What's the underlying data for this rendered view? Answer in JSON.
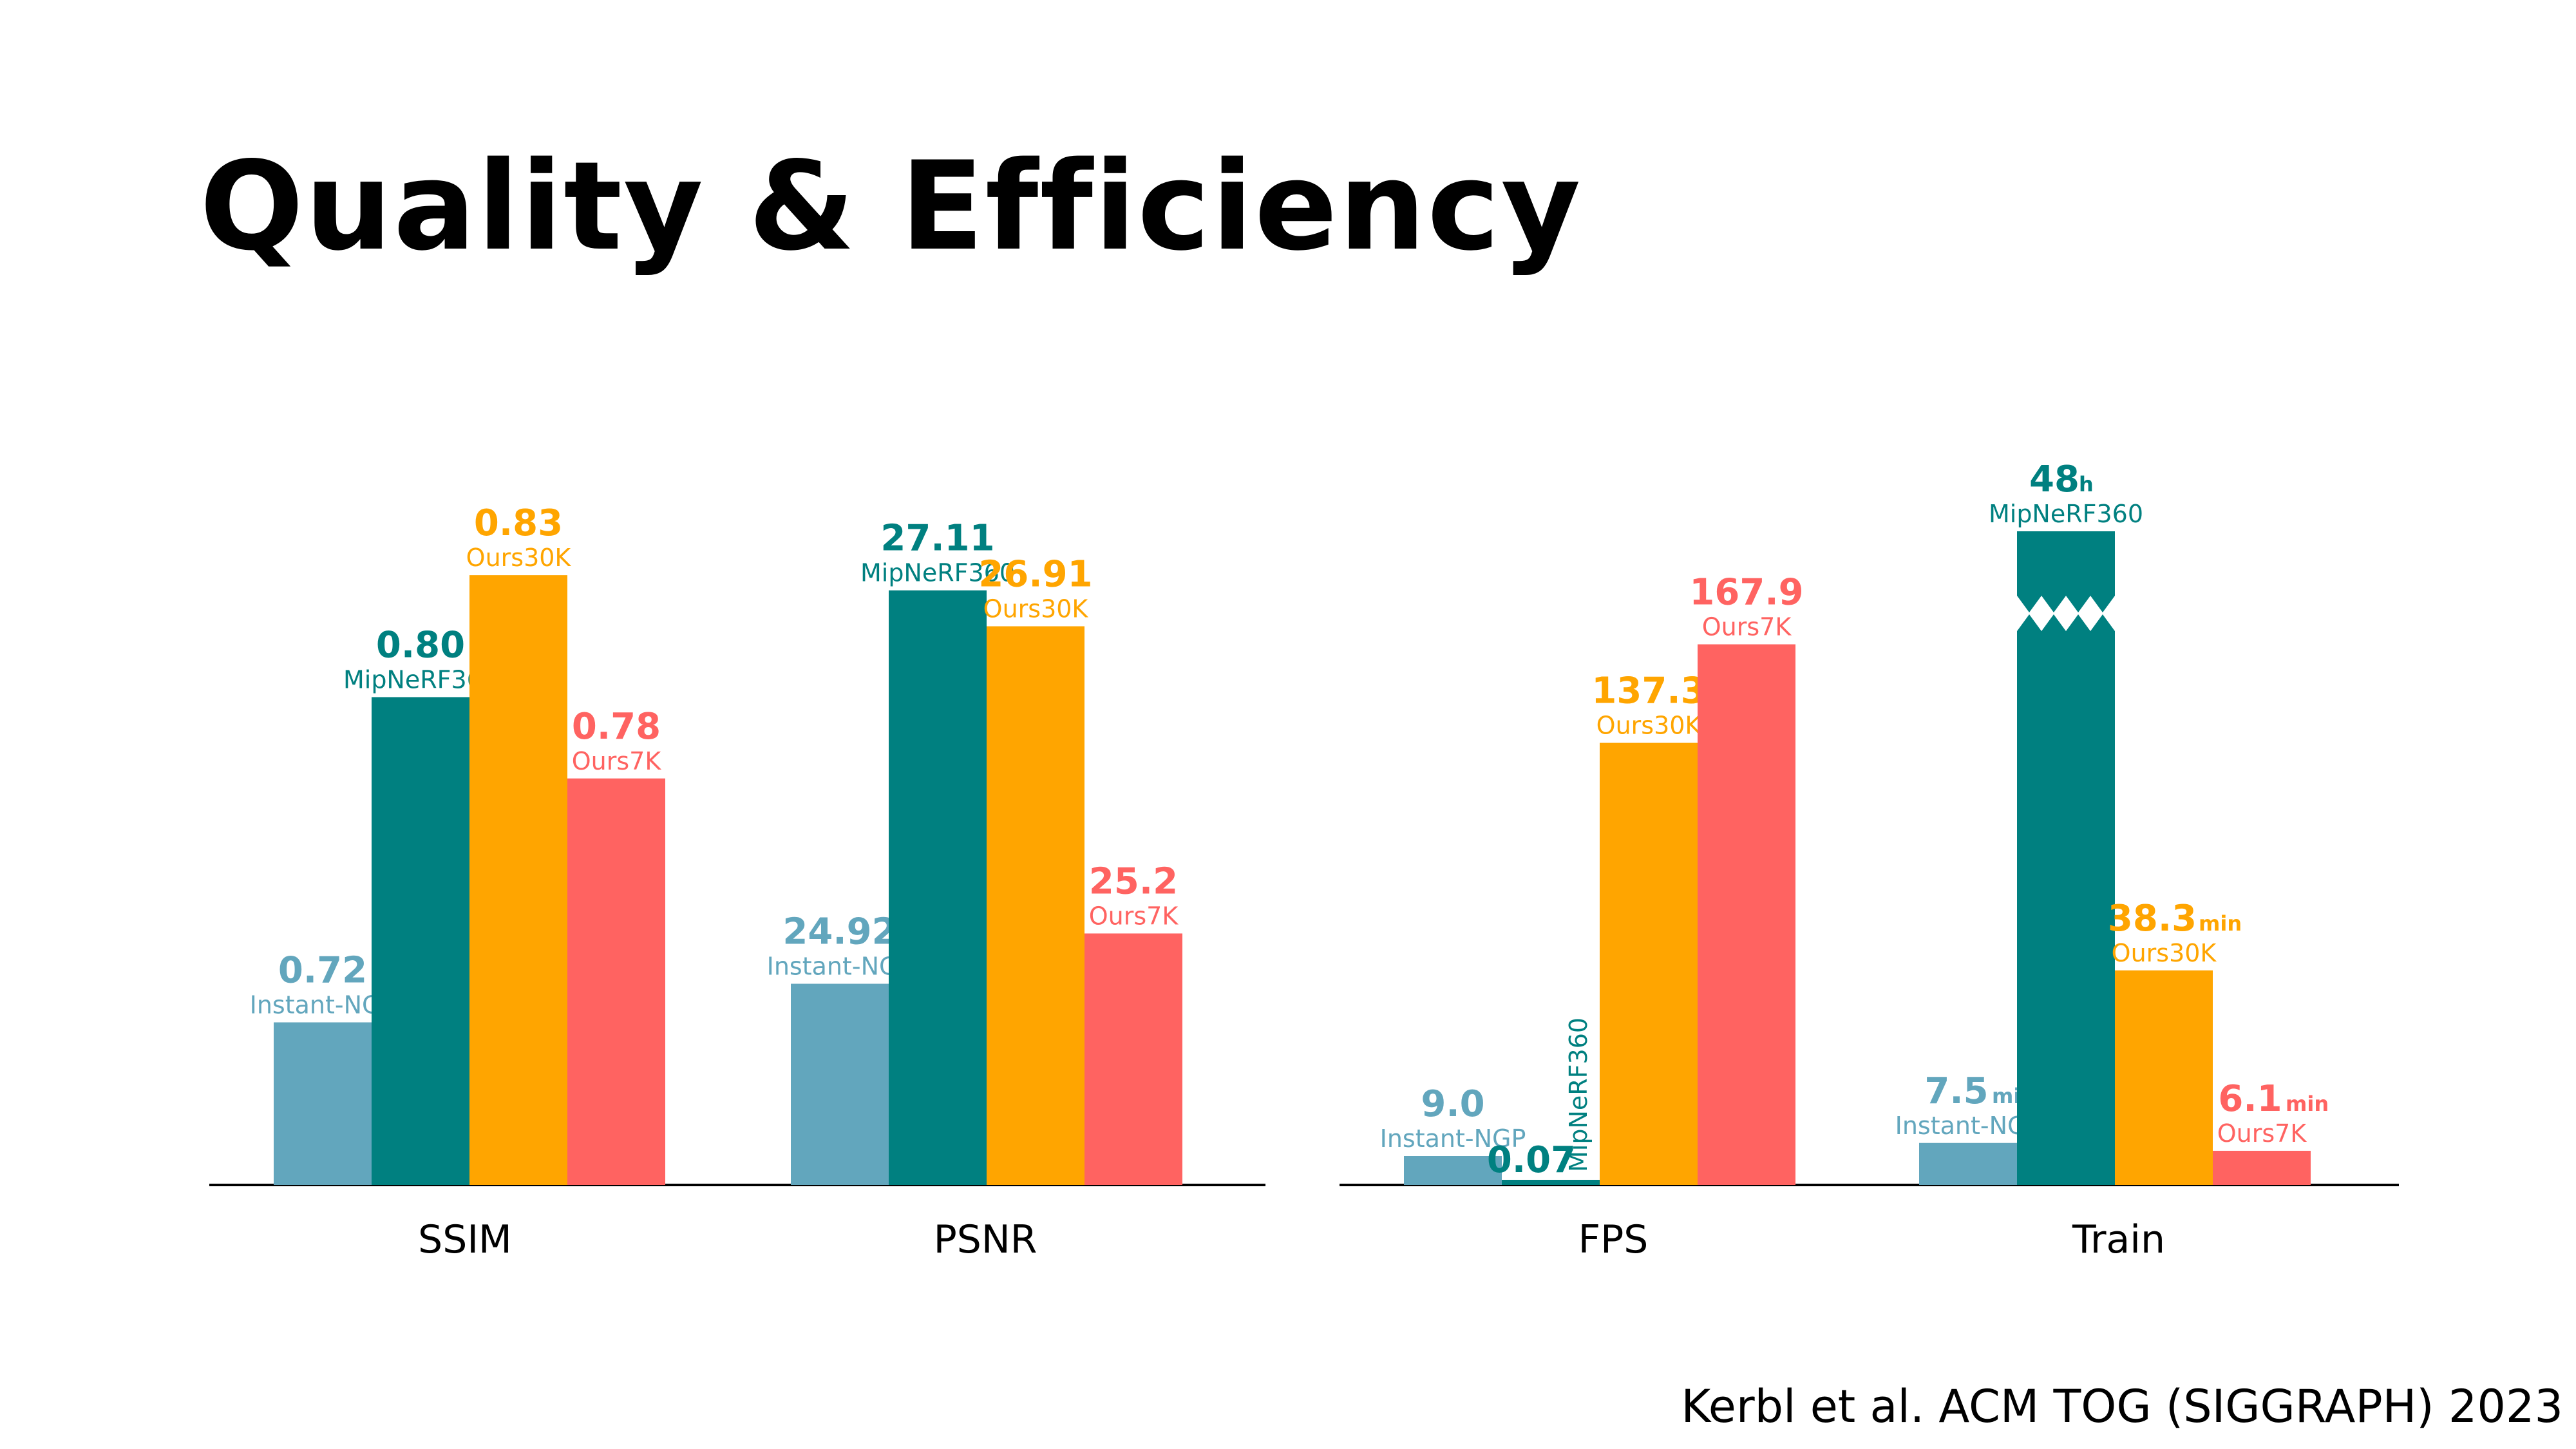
{
  "slide": {
    "title": "Quality & Efficiency",
    "citation": "Kerbl et al. ACM TOG (SIGGRAPH) 2023"
  },
  "colors": {
    "Instant-NGP": "#62a6bd",
    "MipNeRF360": "#008080",
    "Ours30K": "#ffa500",
    "Ours7K": "#ff6361",
    "axis": "#000000"
  },
  "chart_data": [
    {
      "type": "bar",
      "categories": [
        "SSIM",
        "PSNR"
      ],
      "series": [
        {
          "name": "Instant-NGP",
          "values": [
            0.72,
            24.92
          ],
          "labels": [
            "0.72",
            "24.92"
          ]
        },
        {
          "name": "MipNeRF360",
          "values": [
            0.8,
            27.11
          ],
          "labels": [
            "0.80",
            "27.11"
          ]
        },
        {
          "name": "Ours30K",
          "values": [
            0.83,
            26.91
          ],
          "labels": [
            "0.83",
            "26.91"
          ]
        },
        {
          "name": "Ours7K",
          "values": [
            0.78,
            25.2
          ],
          "labels": [
            "0.78",
            "25.2"
          ]
        }
      ],
      "per_category_scale": {
        "SSIM": {
          "ylim": [
            0.68,
            0.84
          ]
        },
        "PSNR": {
          "ylim": [
            23.8,
            27.6
          ]
        }
      }
    },
    {
      "type": "bar",
      "categories": [
        "FPS",
        "Train"
      ],
      "series": [
        {
          "name": "Instant-NGP",
          "values": [
            9.0,
            7.5
          ],
          "labels": [
            "9.0",
            "7.5"
          ],
          "units": [
            "",
            "min"
          ]
        },
        {
          "name": "MipNeRF360",
          "values": [
            0.07,
            2880
          ],
          "labels": [
            "0.07",
            "48"
          ],
          "units": [
            "",
            "h"
          ],
          "broken": [
            false,
            true
          ]
        },
        {
          "name": "Ours30K",
          "values": [
            137.3,
            38.3
          ],
          "labels": [
            "137.3",
            "38.3"
          ],
          "units": [
            "",
            "min"
          ]
        },
        {
          "name": "Ours7K",
          "values": [
            167.9,
            6.1
          ],
          "labels": [
            "167.9",
            "6.1"
          ],
          "units": [
            "",
            "min"
          ]
        }
      ],
      "per_category_scale": {
        "FPS": {
          "ylim": [
            0,
            200
          ]
        },
        "Train": {
          "ylim": [
            0,
            100
          ],
          "axis_break": true
        }
      }
    }
  ]
}
